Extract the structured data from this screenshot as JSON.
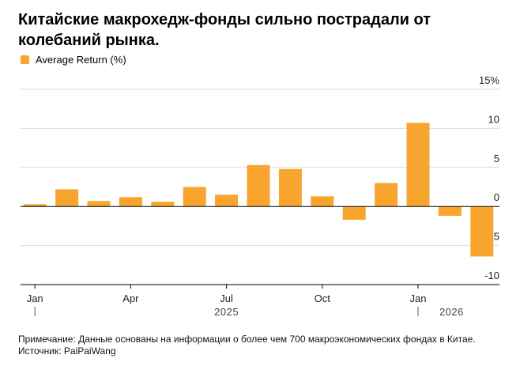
{
  "title": "Китайские макрохедж-фонды сильно пострадали от колебаний рынка.",
  "legend": {
    "label": "Average Return (%)",
    "color": "#f8a530"
  },
  "notes": {
    "note": "Примечание: Данные основаны на информации о более чем 700 макроэкономических фондах в Китае.",
    "source": "Источник: PaiPaiWang"
  },
  "chart_data": {
    "type": "bar",
    "title": "Китайские макрохедж-фонды сильно пострадали от колебаний рынка.",
    "series": [
      {
        "name": "Average Return (%)",
        "color": "#f8a530",
        "categories": [
          "Jan 2025",
          "Feb 2025",
          "Mar 2025",
          "Apr 2025",
          "May 2025",
          "Jun 2025",
          "Jul 2025",
          "Aug 2025",
          "Sep 2025",
          "Oct 2025",
          "Nov 2025",
          "Dec 2025",
          "Jan 2026",
          "Feb 2026",
          "Mar 2026"
        ],
        "values": [
          0.3,
          2.2,
          0.7,
          1.2,
          0.6,
          2.5,
          1.5,
          5.3,
          4.8,
          1.3,
          -1.7,
          3.0,
          10.7,
          -1.2,
          -6.4
        ]
      }
    ],
    "y_axis": {
      "min": -10,
      "max": 15,
      "ticks": [
        15,
        10,
        5,
        0,
        -5,
        -10
      ],
      "tick_labels": [
        "15%",
        "10",
        "5",
        "0",
        "-5",
        "-10"
      ],
      "position": "right"
    },
    "x_axis": {
      "tick_labels": [
        {
          "label": "Jan",
          "index": 0
        },
        {
          "label": "Apr",
          "index": 3
        },
        {
          "label": "Jul",
          "index": 6
        },
        {
          "label": "Oct",
          "index": 9
        },
        {
          "label": "Jan",
          "index": 12
        }
      ],
      "year_labels": [
        {
          "label": "2025",
          "index": 6
        },
        {
          "label": "2026",
          "index": 13
        }
      ]
    },
    "grid": true
  }
}
